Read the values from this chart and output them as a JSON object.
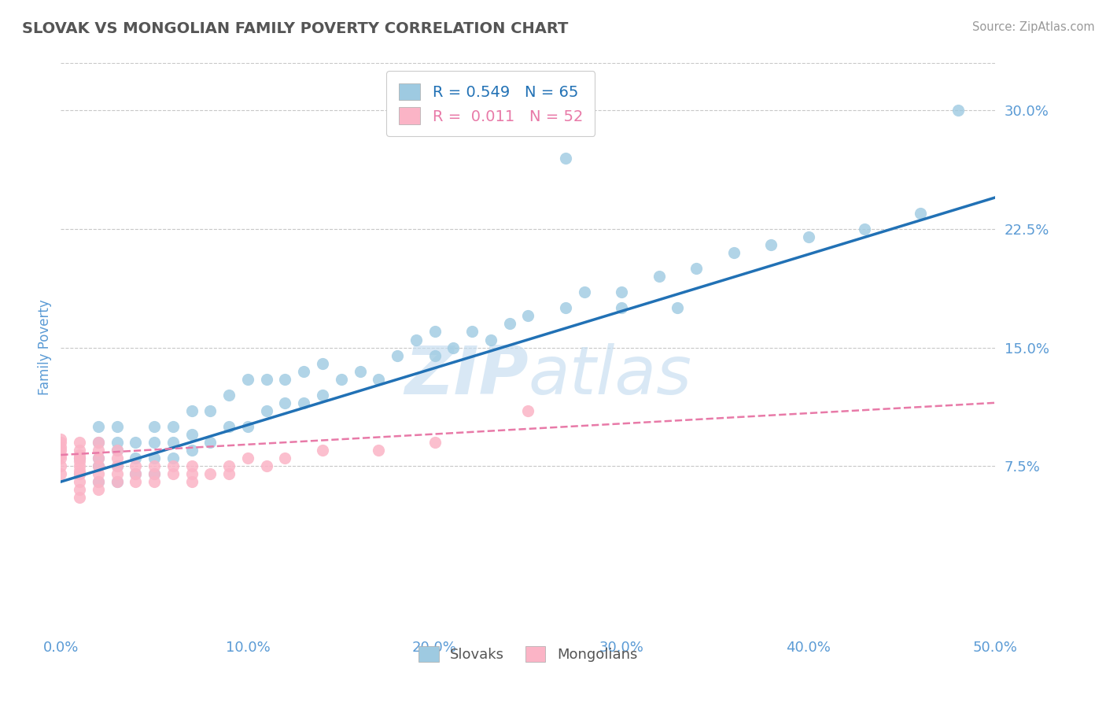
{
  "title": "SLOVAK VS MONGOLIAN FAMILY POVERTY CORRELATION CHART",
  "source": "Source: ZipAtlas.com",
  "ylabel": "Family Poverty",
  "xlim": [
    0.0,
    0.5
  ],
  "ylim": [
    -0.03,
    0.33
  ],
  "yticks": [
    0.075,
    0.15,
    0.225,
    0.3
  ],
  "ytick_labels": [
    "7.5%",
    "15.0%",
    "22.5%",
    "30.0%"
  ],
  "xticks": [
    0.0,
    0.1,
    0.2,
    0.3,
    0.4,
    0.5
  ],
  "xtick_labels": [
    "0.0%",
    "10.0%",
    "20.0%",
    "30.0%",
    "40.0%",
    "50.0%"
  ],
  "slovak_color": "#9ecae1",
  "mongolian_color": "#fbb4c6",
  "slovak_line_color": "#2171b5",
  "mongolian_line_color": "#e87aa8",
  "slovak_R": 0.549,
  "slovak_N": 65,
  "mongolian_R": 0.011,
  "mongolian_N": 52,
  "watermark": "ZIPatlas",
  "background_color": "#ffffff",
  "grid_color": "#c8c8c8",
  "title_color": "#555555",
  "tick_label_color": "#5b9bd5",
  "slovak_scatter_x": [
    0.01,
    0.01,
    0.02,
    0.02,
    0.02,
    0.02,
    0.02,
    0.03,
    0.03,
    0.03,
    0.03,
    0.03,
    0.04,
    0.04,
    0.04,
    0.05,
    0.05,
    0.05,
    0.05,
    0.06,
    0.06,
    0.06,
    0.07,
    0.07,
    0.07,
    0.08,
    0.08,
    0.09,
    0.09,
    0.1,
    0.1,
    0.11,
    0.11,
    0.12,
    0.12,
    0.13,
    0.13,
    0.14,
    0.14,
    0.15,
    0.16,
    0.17,
    0.18,
    0.19,
    0.2,
    0.2,
    0.21,
    0.22,
    0.23,
    0.24,
    0.25,
    0.27,
    0.28,
    0.3,
    0.3,
    0.32,
    0.34,
    0.36,
    0.38,
    0.4,
    0.43,
    0.46,
    0.48,
    0.33,
    0.27
  ],
  "slovak_scatter_y": [
    0.07,
    0.08,
    0.065,
    0.075,
    0.08,
    0.09,
    0.1,
    0.065,
    0.075,
    0.085,
    0.09,
    0.1,
    0.07,
    0.08,
    0.09,
    0.07,
    0.08,
    0.09,
    0.1,
    0.08,
    0.09,
    0.1,
    0.085,
    0.095,
    0.11,
    0.09,
    0.11,
    0.1,
    0.12,
    0.1,
    0.13,
    0.11,
    0.13,
    0.115,
    0.13,
    0.115,
    0.135,
    0.12,
    0.14,
    0.13,
    0.135,
    0.13,
    0.145,
    0.155,
    0.145,
    0.16,
    0.15,
    0.16,
    0.155,
    0.165,
    0.17,
    0.175,
    0.185,
    0.175,
    0.185,
    0.195,
    0.2,
    0.21,
    0.215,
    0.22,
    0.225,
    0.235,
    0.3,
    0.175,
    0.27
  ],
  "mongolian_scatter_x": [
    0.0,
    0.0,
    0.0,
    0.0,
    0.0,
    0.0,
    0.0,
    0.0,
    0.01,
    0.01,
    0.01,
    0.01,
    0.01,
    0.01,
    0.01,
    0.01,
    0.01,
    0.01,
    0.01,
    0.02,
    0.02,
    0.02,
    0.02,
    0.02,
    0.02,
    0.02,
    0.03,
    0.03,
    0.03,
    0.03,
    0.03,
    0.04,
    0.04,
    0.04,
    0.05,
    0.05,
    0.05,
    0.06,
    0.06,
    0.07,
    0.07,
    0.07,
    0.08,
    0.09,
    0.09,
    0.1,
    0.11,
    0.12,
    0.14,
    0.17,
    0.2,
    0.25
  ],
  "mongolian_scatter_y": [
    0.07,
    0.075,
    0.08,
    0.082,
    0.085,
    0.087,
    0.09,
    0.092,
    0.055,
    0.06,
    0.065,
    0.07,
    0.072,
    0.075,
    0.078,
    0.08,
    0.082,
    0.085,
    0.09,
    0.06,
    0.065,
    0.07,
    0.075,
    0.08,
    0.085,
    0.09,
    0.065,
    0.07,
    0.075,
    0.08,
    0.085,
    0.065,
    0.07,
    0.075,
    0.065,
    0.07,
    0.075,
    0.07,
    0.075,
    0.065,
    0.07,
    0.075,
    0.07,
    0.07,
    0.075,
    0.08,
    0.075,
    0.08,
    0.085,
    0.085,
    0.09,
    0.11
  ]
}
